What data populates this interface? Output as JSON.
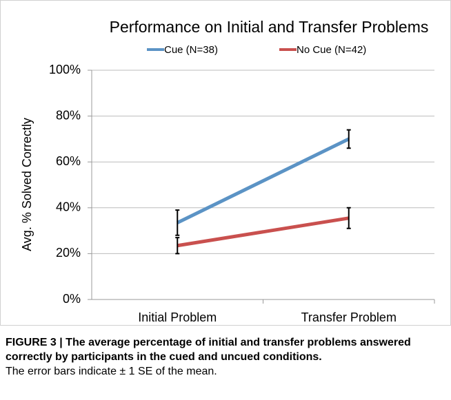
{
  "chart_data": {
    "type": "line",
    "title": "Performance on Initial and Transfer Problems",
    "y_label": "Avg. % Solved Correctly",
    "categories": [
      "Initial Problem",
      "Transfer Problem"
    ],
    "series": [
      {
        "name": "Cue (N=38)",
        "color": "#5b93c5",
        "values": [
          33.5,
          70
        ],
        "errors": [
          5.5,
          4
        ]
      },
      {
        "name": "No Cue (N=42)",
        "color": "#c9504e",
        "values": [
          23.5,
          35.5
        ],
        "errors": [
          3.5,
          4.5
        ]
      }
    ],
    "ylim": [
      0,
      100
    ],
    "yticks": [
      {
        "value": 0,
        "label": "0%"
      },
      {
        "value": 20,
        "label": "20%"
      },
      {
        "value": 40,
        "label": "40%"
      },
      {
        "value": 60,
        "label": "60%"
      },
      {
        "value": 80,
        "label": "80%"
      },
      {
        "value": 100,
        "label": "100%"
      }
    ],
    "grid": true,
    "legend": "top"
  },
  "caption": {
    "heading": "FIGURE 3",
    "title": "The average percentage of initial and transfer problems answered correctly by participants in the cued and uncued conditions.",
    "text": "The error bars indicate ± 1 SE of the mean."
  }
}
